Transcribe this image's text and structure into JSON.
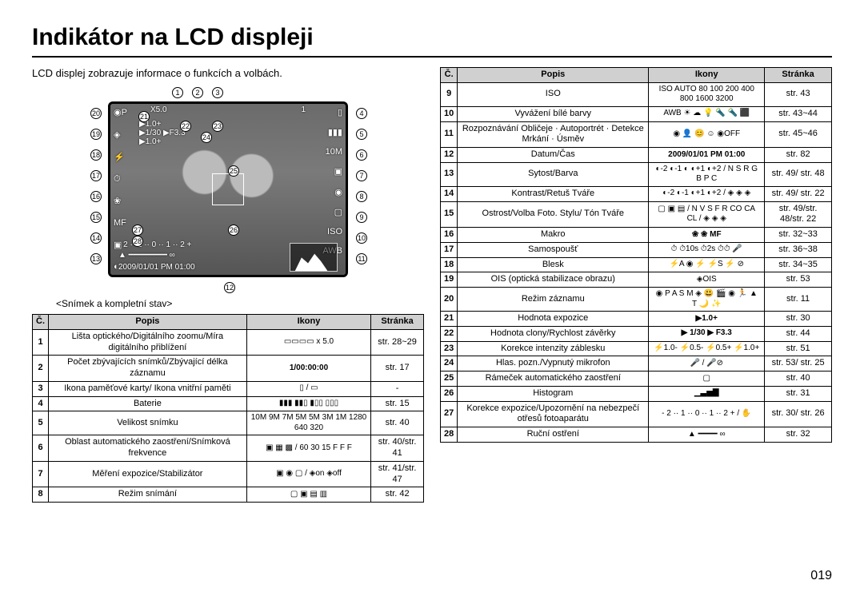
{
  "title": "Indikátor na LCD displeji",
  "subtitle": "LCD displej zobrazuje informace o funkcích a volbách.",
  "caption": "<Snímek a kompletní stav>",
  "page_number": "019",
  "lcd": {
    "zoom": "X5.0",
    "count": "1",
    "ev1": "▶1.0+",
    "shut": "▶1/30",
    "ap": "▶F3.3",
    "ev2": "▶1.0+",
    "bracket": "- 2 ·· 1 ·· 0 ·· 1 ·· 2 +",
    "datetime": "2009/01/01 PM 01:00"
  },
  "callouts_top": [
    "1",
    "2",
    "3"
  ],
  "callouts_right": [
    "4",
    "5",
    "6",
    "7",
    "8",
    "9",
    "10",
    "11"
  ],
  "callouts_bottom": [
    "12"
  ],
  "callouts_left": [
    "20",
    "19",
    "18",
    "17",
    "16",
    "15",
    "14",
    "13"
  ],
  "callouts_inner": [
    "21",
    "22",
    "23",
    "24",
    "25",
    "26",
    "27",
    "28"
  ],
  "table1": {
    "headers": [
      "Č.",
      "Popis",
      "Ikony",
      "Stránka"
    ],
    "rows": [
      {
        "n": "1",
        "desc": "Lišta optického/Digitálního zoomu/Míra digitálního přiblížení",
        "icons": "▭▭▭▭    x 5.0",
        "page": "str. 28~29"
      },
      {
        "n": "2",
        "desc": "Počet zbývajících snímků/Zbývající délka záznamu",
        "icons": "1/00:00:00",
        "page": "str. 17"
      },
      {
        "n": "3",
        "desc": "Ikona paměťové karty/ Ikona vnitřní paměti",
        "icons": "▯ / ▭",
        "page": "-"
      },
      {
        "n": "4",
        "desc": "Baterie",
        "icons": "▮▮▮ ▮▮▯ ▮▯▯ ▯▯▯",
        "page": "str. 15"
      },
      {
        "n": "5",
        "desc": "Velikost snímku",
        "icons": "10M 9M 7M 5M 5M 3M 1M 1280 640 320",
        "page": "str. 40"
      },
      {
        "n": "6",
        "desc": "Oblast automatického zaostření/Snímková frekvence",
        "icons": "▣ ▦ ▩ / 60 30 15 F F F",
        "page": "str. 40/str. 41"
      },
      {
        "n": "7",
        "desc": "Měření expozice/Stabilizátor",
        "icons": "▣ ◉ ▢ / ◈on ◈off",
        "page": "str. 41/str. 47"
      },
      {
        "n": "8",
        "desc": "Režim snímání",
        "icons": "▢ ▣ ▤ ▥",
        "page": "str. 42"
      }
    ]
  },
  "table2": {
    "headers": [
      "Č.",
      "Popis",
      "Ikony",
      "Stránka"
    ],
    "rows": [
      {
        "n": "9",
        "desc": "ISO",
        "icons": "ISO AUTO 80 100 200 400 800 1600 3200",
        "page": "str. 43"
      },
      {
        "n": "10",
        "desc": "Vyvážení bílé barvy",
        "icons": "AWB ☀ ☁ 💡 🔦 🔦 ⬛",
        "page": "str. 43~44"
      },
      {
        "n": "11",
        "desc": "Rozpoznávání Obličeje · Autoportrét · Detekce Mrkání · Úsměv",
        "icons": "◉ 👤 😊 ☺ ◉OFF",
        "page": "str. 45~46"
      },
      {
        "n": "12",
        "desc": "Datum/Čas",
        "icons": "2009/01/01 PM 01:00",
        "page": "str. 82"
      },
      {
        "n": "13",
        "desc": "Sytost/Barva",
        "icons": "◐-2 ◐-1 ◐ ◐+1 ◐+2 /  N S R G B P C",
        "page": "str. 49/ str. 48"
      },
      {
        "n": "14",
        "desc": "Kontrast/Retuš Tváře",
        "icons": "◐-2 ◐-1 ◐+1 ◐+2 /  ◈ ◈ ◈",
        "page": "str. 49/ str. 22"
      },
      {
        "n": "15",
        "desc": "Ostrost/Volba Foto. Stylu/ Tón Tváře",
        "icons": "▢ ▣ ▤ / N V S F R CO CA CL / ◈ ◈ ◈",
        "page": "str. 49/str. 48/str. 22"
      },
      {
        "n": "16",
        "desc": "Makro",
        "icons": "❀ ❀ MF",
        "page": "str. 32~33"
      },
      {
        "n": "17",
        "desc": "Samospoušť",
        "icons": "⏱ ⏱10s ⏱2s ⏱⏱ 🎤",
        "page": "str. 36~38"
      },
      {
        "n": "18",
        "desc": "Blesk",
        "icons": "⚡A ◉ ⚡ ⚡S ⚡ ⊘",
        "page": "str. 34~35"
      },
      {
        "n": "19",
        "desc": "OIS (optická stabilizace obrazu)",
        "icons": "◈OIS",
        "page": "str. 53"
      },
      {
        "n": "20",
        "desc": "Režim záznamu",
        "icons": "◉ P A S M ◈ 😃 🎬 ◉ 🏃 ▲ T 🌙 ✨",
        "page": "str. 11"
      },
      {
        "n": "21",
        "desc": "Hodnota expozice",
        "icons": "▶1.0+",
        "page": "str. 30"
      },
      {
        "n": "22",
        "desc": "Hodnota clony/Rychlost závěrky",
        "icons": "▶ 1/30 ▶ F3.3",
        "page": "str. 44"
      },
      {
        "n": "23",
        "desc": "Korekce intenzity záblesku",
        "icons": "⚡1.0- ⚡0.5- ⚡0.5+ ⚡1.0+",
        "page": "str. 51"
      },
      {
        "n": "24",
        "desc": "Hlas. pozn./Vypnutý mikrofon",
        "icons": "🎤 / 🎤⊘",
        "page": "str. 53/ str. 25"
      },
      {
        "n": "25",
        "desc": "Rámeček automatického zaostření",
        "icons": "▢",
        "page": "str. 40"
      },
      {
        "n": "26",
        "desc": "Histogram",
        "icons": "▁▃▅▇",
        "page": "str. 31"
      },
      {
        "n": "27",
        "desc": "Korekce expozice/Upozornění na nebezpečí otřesů fotoaparátu",
        "icons": "- 2 ·· 1 ·· 0 ·· 1 ·· 2 + / ✋",
        "page": "str. 30/ str. 26"
      },
      {
        "n": "28",
        "desc": "Ruční ostření",
        "icons": "▲      ━━━━      ∞",
        "page": "str. 32"
      }
    ]
  }
}
